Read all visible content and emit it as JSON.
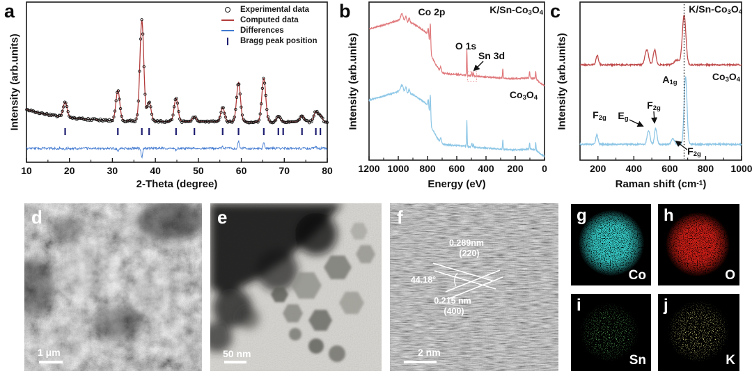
{
  "panels": {
    "a": {
      "label": "a",
      "xlabel": "2-Theta (degree)",
      "ylabel": "Intensity (arb.units)",
      "legend": [
        "Experimental data",
        "Computed data",
        "Differences",
        "Bragg peak position"
      ]
    },
    "b": {
      "label": "b",
      "xlabel": "Energy (eV)",
      "ylabel": "Intensity (arb.units)",
      "sample_top": "K/Sn-Co_{3}O_{4}",
      "sample_bottom": "Co_{3}O_{4}",
      "peak_co2p": "Co 2p",
      "peak_o1s": "O 1s",
      "peak_sn3d": "Sn 3d"
    },
    "c": {
      "label": "c",
      "xlabel": "Raman shift (cm^{-1})",
      "ylabel": "Intensity (arb.units)",
      "sample_top": "K/Sn-Co_{3}O_{4}",
      "sample_bottom": "Co_{3}O_{4}",
      "f2g_left": "F_{2g}",
      "eg": "E_{g}",
      "f2g_mid": "F_{2g}",
      "a1g": "A_{1g}",
      "f2g_right": "F_{2g}"
    },
    "d": {
      "label": "d",
      "scalebar": "1 μm"
    },
    "e": {
      "label": "e",
      "scalebar": "50 nm"
    },
    "f": {
      "label": "f",
      "scalebar": "2 nm",
      "spacing_1": "0.289nm",
      "plane_1": "(220)",
      "angle": "44.18°",
      "spacing_2": "0.215 nm",
      "plane_2": "(400)"
    },
    "g": {
      "label": "g",
      "element": "Co",
      "color": "#35c8c4"
    },
    "h": {
      "label": "h",
      "element": "O",
      "color": "#cc1f16"
    },
    "i": {
      "label": "i",
      "element": "Sn",
      "color": "#56a659"
    },
    "j": {
      "label": "j",
      "element": "K",
      "color": "#d8d480"
    }
  },
  "chart_data": [
    {
      "id": "xrd",
      "type": "line",
      "panel": "a",
      "xlabel": "2-Theta (degree)",
      "ylabel": "Intensity (arb.units)",
      "x_range": [
        10,
        80
      ],
      "x_ticks": [
        10,
        20,
        30,
        40,
        50,
        60,
        70,
        80
      ],
      "legend_position": "top-right",
      "series": [
        {
          "name": "Experimental data",
          "style": "open circle markers",
          "color": "#141414"
        },
        {
          "name": "Computed data",
          "style": "line",
          "color": "#b23b3b",
          "peaks_2theta": [
            19.0,
            31.27,
            36.85,
            38.55,
            44.81,
            49.08,
            55.66,
            59.35,
            65.23,
            68.62,
            74.12,
            77.34,
            78.4
          ],
          "peak_rel_intensity": [
            0.15,
            0.3,
            1.0,
            0.19,
            0.23,
            0.05,
            0.14,
            0.39,
            0.43,
            0.05,
            0.06,
            0.1,
            0.06
          ]
        },
        {
          "name": "Differences",
          "style": "line",
          "color": "#4179d0"
        },
        {
          "name": "Bragg peak position",
          "style": "vertical ticks",
          "color": "#1d1d70",
          "positions": [
            19.0,
            31.27,
            36.85,
            38.55,
            44.81,
            49.08,
            55.66,
            59.35,
            65.23,
            68.62,
            69.74,
            74.12,
            77.34,
            78.4
          ]
        }
      ]
    },
    {
      "id": "xps",
      "type": "line",
      "panel": "b",
      "xlabel": "Energy (eV)",
      "ylabel": "Intensity (arb.units)",
      "x_axis_reversed": true,
      "x_range": [
        1200,
        0
      ],
      "x_ticks": [
        1200,
        1000,
        800,
        600,
        400,
        200,
        0
      ],
      "peak_annotations": [
        {
          "label": "Co 2p",
          "energy_eV": 781
        },
        {
          "label": "O 1s",
          "energy_eV": 531
        },
        {
          "label": "Sn 3d",
          "energy_eV": 490
        }
      ],
      "series": [
        {
          "name": "K/Sn-Co3O4",
          "color": "#e0797c",
          "offset": 0,
          "anchors": [
            [
              1200,
              0.83
            ],
            [
              1100,
              0.855
            ],
            [
              1000,
              0.885
            ],
            [
              950,
              0.875
            ],
            [
              900,
              0.865
            ],
            [
              850,
              0.835
            ],
            [
              800,
              0.8
            ],
            [
              779,
              0.73
            ],
            [
              772,
              0.655
            ],
            [
              760,
              0.635
            ],
            [
              740,
              0.6
            ],
            [
              715,
              0.565
            ],
            [
              690,
              0.55
            ],
            [
              640,
              0.545
            ],
            [
              560,
              0.54
            ],
            [
              520,
              0.535
            ],
            [
              460,
              0.53
            ],
            [
              400,
              0.527
            ],
            [
              340,
              0.523
            ],
            [
              280,
              0.518
            ],
            [
              220,
              0.515
            ],
            [
              160,
              0.517
            ],
            [
              100,
              0.52
            ],
            [
              60,
              0.515
            ],
            [
              30,
              0.49
            ],
            [
              0,
              0.472
            ]
          ],
          "peaks": [
            [
              975,
              0.045,
              9
            ],
            [
              948,
              0.035,
              5
            ],
            [
              925,
              0.028,
              5
            ],
            [
              781,
              0.125,
              2.6
            ],
            [
              795,
              0.05,
              3
            ],
            [
              710,
              0.03,
              4
            ],
            [
              531,
              0.165,
              2.0
            ],
            [
              497,
              0.024,
              2.2
            ],
            [
              486,
              0.02,
              2.2
            ],
            [
              285,
              0.06,
              2.2
            ],
            [
              102,
              0.04,
              2.4
            ],
            [
              60,
              0.05,
              2.0
            ]
          ]
        },
        {
          "name": "Co3O4",
          "color": "#8ec7e6",
          "offset": -0.45
        }
      ]
    },
    {
      "id": "raman",
      "type": "line",
      "panel": "c",
      "xlabel": "Raman shift (cm^{-1})",
      "ylabel": "Intensity (arb.units)",
      "x_range": [
        100,
        1000
      ],
      "x_ticks": [
        200,
        400,
        600,
        800,
        1000
      ],
      "dashed_line_cm1": 680,
      "peak_assignments": [
        {
          "label": "F2g",
          "shift_cm1": 194
        },
        {
          "label": "Eg",
          "shift_cm1": 482
        },
        {
          "label": "F2g",
          "shift_cm1": 522
        },
        {
          "label": "F2g",
          "shift_cm1": 618
        },
        {
          "label": "A1g",
          "shift_cm1": 685
        }
      ],
      "series": [
        {
          "name": "K/Sn-Co3O4",
          "color": "#c04a4a",
          "baseline": 0.603,
          "peaks": [
            [
              196,
              0.06,
              7
            ],
            [
              472,
              0.095,
              10
            ],
            [
              516,
              0.095,
              8
            ],
            [
              640,
              0.03,
              16
            ],
            [
              680,
              0.315,
              10
            ]
          ]
        },
        {
          "name": "Co3O4",
          "color": "#8cc5e5",
          "baseline": 0.1,
          "peaks": [
            [
              194,
              0.06,
              6
            ],
            [
              482,
              0.088,
              8
            ],
            [
              522,
              0.1,
              7
            ],
            [
              618,
              0.035,
              9
            ],
            [
              688,
              0.43,
              8
            ]
          ]
        }
      ]
    }
  ]
}
